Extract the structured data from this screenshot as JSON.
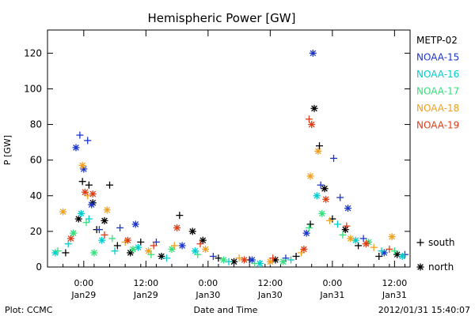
{
  "chart_data": {
    "type": "scatter",
    "title": "Hemispheric Power [GW]",
    "ylabel": "P [GW]",
    "xlabel": "Date and Time",
    "ylim": [
      0,
      133
    ],
    "xlim": [
      "2012-01-28T17:00",
      "2012-01-31T15:00"
    ],
    "y_ticks": [
      0,
      20,
      40,
      60,
      80,
      100,
      120
    ],
    "x_ticks": [
      {
        "at": "2012-01-29T00:00",
        "time": "0:00",
        "date": "Jan29"
      },
      {
        "at": "2012-01-29T12:00",
        "time": "12:00",
        "date": "Jan29"
      },
      {
        "at": "2012-01-30T00:00",
        "time": "0:00",
        "date": "Jan30"
      },
      {
        "at": "2012-01-30T12:00",
        "time": "12:00",
        "date": "Jan30"
      },
      {
        "at": "2012-01-31T00:00",
        "time": "0:00",
        "date": "Jan31"
      },
      {
        "at": "2012-01-31T12:00",
        "time": "12:00",
        "date": "Jan31"
      }
    ],
    "hemisphere_key": [
      {
        "symbol": "+",
        "label": "south"
      },
      {
        "symbol": "*",
        "label": "north"
      }
    ],
    "series": [
      {
        "name": "METP-02",
        "color": "#000000",
        "points": [
          {
            "t": "2012-01-28T20:30",
            "v": 8,
            "h": "south"
          },
          {
            "t": "2012-01-28T23:00",
            "v": 27,
            "h": "north"
          },
          {
            "t": "2012-01-28T23:45",
            "v": 48,
            "h": "south"
          },
          {
            "t": "2012-01-29T01:00",
            "v": 46,
            "h": "south"
          },
          {
            "t": "2012-01-29T01:45",
            "v": 36,
            "h": "north"
          },
          {
            "t": "2012-01-29T02:30",
            "v": 21,
            "h": "south"
          },
          {
            "t": "2012-01-29T04:00",
            "v": 26,
            "h": "north"
          },
          {
            "t": "2012-01-29T05:00",
            "v": 46,
            "h": "south"
          },
          {
            "t": "2012-01-29T06:30",
            "v": 12,
            "h": "south"
          },
          {
            "t": "2012-01-29T09:00",
            "v": 8,
            "h": "north"
          },
          {
            "t": "2012-01-29T11:00",
            "v": 14,
            "h": "south"
          },
          {
            "t": "2012-01-29T15:00",
            "v": 6,
            "h": "north"
          },
          {
            "t": "2012-01-29T18:30",
            "v": 29,
            "h": "south"
          },
          {
            "t": "2012-01-29T21:00",
            "v": 20,
            "h": "north"
          },
          {
            "t": "2012-01-29T23:00",
            "v": 15,
            "h": "north"
          },
          {
            "t": "2012-01-30T02:00",
            "v": 5,
            "h": "south"
          },
          {
            "t": "2012-01-30T05:00",
            "v": 3,
            "h": "north"
          },
          {
            "t": "2012-01-30T08:00",
            "v": 4,
            "h": "south"
          },
          {
            "t": "2012-01-30T13:00",
            "v": 4,
            "h": "north"
          },
          {
            "t": "2012-01-30T17:00",
            "v": 6,
            "h": "south"
          },
          {
            "t": "2012-01-30T19:45",
            "v": 24,
            "h": "south"
          },
          {
            "t": "2012-01-30T20:30",
            "v": 89,
            "h": "north"
          },
          {
            "t": "2012-01-30T21:30",
            "v": 68,
            "h": "south"
          },
          {
            "t": "2012-01-30T22:30",
            "v": 44,
            "h": "north"
          },
          {
            "t": "2012-01-31T00:00",
            "v": 27,
            "h": "south"
          },
          {
            "t": "2012-01-31T02:30",
            "v": 21,
            "h": "north"
          },
          {
            "t": "2012-01-31T05:00",
            "v": 12,
            "h": "south"
          },
          {
            "t": "2012-01-31T09:00",
            "v": 6,
            "h": "south"
          },
          {
            "t": "2012-01-31T12:30",
            "v": 7,
            "h": "north"
          }
        ]
      },
      {
        "name": "NOAA-15",
        "color": "#1a35cc",
        "points": [
          {
            "t": "2012-01-28T22:30",
            "v": 67,
            "h": "north"
          },
          {
            "t": "2012-01-28T23:15",
            "v": 74,
            "h": "south"
          },
          {
            "t": "2012-01-29T00:00",
            "v": 55,
            "h": "north"
          },
          {
            "t": "2012-01-29T00:45",
            "v": 71,
            "h": "south"
          },
          {
            "t": "2012-01-29T01:30",
            "v": 35,
            "h": "north"
          },
          {
            "t": "2012-01-29T03:00",
            "v": 21,
            "h": "south"
          },
          {
            "t": "2012-01-29T07:00",
            "v": 22,
            "h": "south"
          },
          {
            "t": "2012-01-29T10:00",
            "v": 24,
            "h": "north"
          },
          {
            "t": "2012-01-29T14:00",
            "v": 14,
            "h": "south"
          },
          {
            "t": "2012-01-29T19:00",
            "v": 12,
            "h": "north"
          },
          {
            "t": "2012-01-30T01:00",
            "v": 6,
            "h": "south"
          },
          {
            "t": "2012-01-30T08:30",
            "v": 4,
            "h": "north"
          },
          {
            "t": "2012-01-30T15:00",
            "v": 5,
            "h": "south"
          },
          {
            "t": "2012-01-30T19:00",
            "v": 19,
            "h": "north"
          },
          {
            "t": "2012-01-30T20:15",
            "v": 120,
            "h": "north"
          },
          {
            "t": "2012-01-30T21:45",
            "v": 46,
            "h": "south"
          },
          {
            "t": "2012-01-31T00:15",
            "v": 61,
            "h": "south"
          },
          {
            "t": "2012-01-31T01:30",
            "v": 39,
            "h": "south"
          },
          {
            "t": "2012-01-31T03:00",
            "v": 33,
            "h": "north"
          },
          {
            "t": "2012-01-31T06:00",
            "v": 16,
            "h": "south"
          },
          {
            "t": "2012-01-31T10:00",
            "v": 8,
            "h": "north"
          },
          {
            "t": "2012-01-31T14:00",
            "v": 7,
            "h": "south"
          }
        ]
      },
      {
        "name": "NOAA-16",
        "color": "#00cccc",
        "points": [
          {
            "t": "2012-01-28T18:30",
            "v": 8,
            "h": "north"
          },
          {
            "t": "2012-01-28T21:00",
            "v": 13,
            "h": "south"
          },
          {
            "t": "2012-01-28T23:30",
            "v": 30,
            "h": "north"
          },
          {
            "t": "2012-01-29T01:00",
            "v": 27,
            "h": "south"
          },
          {
            "t": "2012-01-29T03:30",
            "v": 15,
            "h": "north"
          },
          {
            "t": "2012-01-29T06:00",
            "v": 9,
            "h": "south"
          },
          {
            "t": "2012-01-29T10:30",
            "v": 11,
            "h": "north"
          },
          {
            "t": "2012-01-29T16:00",
            "v": 5,
            "h": "south"
          },
          {
            "t": "2012-01-29T21:30",
            "v": 9,
            "h": "north"
          },
          {
            "t": "2012-01-30T04:00",
            "v": 3,
            "h": "south"
          },
          {
            "t": "2012-01-30T10:00",
            "v": 2,
            "h": "north"
          },
          {
            "t": "2012-01-30T16:00",
            "v": 4,
            "h": "south"
          },
          {
            "t": "2012-01-30T21:00",
            "v": 40,
            "h": "north"
          },
          {
            "t": "2012-01-31T01:00",
            "v": 24,
            "h": "south"
          },
          {
            "t": "2012-01-31T04:30",
            "v": 15,
            "h": "north"
          },
          {
            "t": "2012-01-31T09:30",
            "v": 9,
            "h": "south"
          },
          {
            "t": "2012-01-31T13:30",
            "v": 6,
            "h": "north"
          }
        ]
      },
      {
        "name": "NOAA-17",
        "color": "#33e07a",
        "points": [
          {
            "t": "2012-01-28T19:00",
            "v": 9,
            "h": "south"
          },
          {
            "t": "2012-01-28T22:00",
            "v": 19,
            "h": "north"
          },
          {
            "t": "2012-01-29T00:30",
            "v": 25,
            "h": "south"
          },
          {
            "t": "2012-01-29T02:00",
            "v": 8,
            "h": "north"
          },
          {
            "t": "2012-01-29T05:30",
            "v": 16,
            "h": "south"
          },
          {
            "t": "2012-01-29T09:30",
            "v": 10,
            "h": "north"
          },
          {
            "t": "2012-01-29T13:00",
            "v": 7,
            "h": "south"
          },
          {
            "t": "2012-01-29T17:00",
            "v": 10,
            "h": "north"
          },
          {
            "t": "2012-01-29T22:00",
            "v": 7,
            "h": "south"
          },
          {
            "t": "2012-01-30T03:00",
            "v": 4,
            "h": "north"
          },
          {
            "t": "2012-01-30T09:00",
            "v": 2,
            "h": "south"
          },
          {
            "t": "2012-01-30T14:30",
            "v": 3,
            "h": "north"
          },
          {
            "t": "2012-01-30T19:30",
            "v": 22,
            "h": "south"
          },
          {
            "t": "2012-01-30T22:00",
            "v": 30,
            "h": "north"
          },
          {
            "t": "2012-01-31T02:00",
            "v": 18,
            "h": "south"
          },
          {
            "t": "2012-01-31T07:00",
            "v": 14,
            "h": "north"
          },
          {
            "t": "2012-01-31T12:00",
            "v": 9,
            "h": "south"
          }
        ]
      },
      {
        "name": "NOAA-18",
        "color": "#f0a020",
        "points": [
          {
            "t": "2012-01-28T20:00",
            "v": 31,
            "h": "north"
          },
          {
            "t": "2012-01-28T23:45",
            "v": 57,
            "h": "north"
          },
          {
            "t": "2012-01-29T00:45",
            "v": 40,
            "h": "south"
          },
          {
            "t": "2012-01-29T04:30",
            "v": 32,
            "h": "north"
          },
          {
            "t": "2012-01-29T08:00",
            "v": 14,
            "h": "south"
          },
          {
            "t": "2012-01-29T12:30",
            "v": 9,
            "h": "north"
          },
          {
            "t": "2012-01-29T17:30",
            "v": 12,
            "h": "south"
          },
          {
            "t": "2012-01-29T23:30",
            "v": 10,
            "h": "north"
          },
          {
            "t": "2012-01-30T06:00",
            "v": 5,
            "h": "south"
          },
          {
            "t": "2012-01-30T12:00",
            "v": 3,
            "h": "north"
          },
          {
            "t": "2012-01-30T18:00",
            "v": 8,
            "h": "south"
          },
          {
            "t": "2012-01-30T19:45",
            "v": 51,
            "h": "north"
          },
          {
            "t": "2012-01-30T21:15",
            "v": 65,
            "h": "north"
          },
          {
            "t": "2012-01-30T23:30",
            "v": 26,
            "h": "south"
          },
          {
            "t": "2012-01-31T03:30",
            "v": 16,
            "h": "north"
          },
          {
            "t": "2012-01-31T08:00",
            "v": 11,
            "h": "south"
          },
          {
            "t": "2012-01-31T11:30",
            "v": 17,
            "h": "north"
          }
        ]
      },
      {
        "name": "NOAA-19",
        "color": "#e03c14",
        "points": [
          {
            "t": "2012-01-28T21:30",
            "v": 16,
            "h": "north"
          },
          {
            "t": "2012-01-29T00:15",
            "v": 42,
            "h": "north"
          },
          {
            "t": "2012-01-29T01:45",
            "v": 41,
            "h": "north"
          },
          {
            "t": "2012-01-29T04:00",
            "v": 18,
            "h": "south"
          },
          {
            "t": "2012-01-29T08:30",
            "v": 15,
            "h": "north"
          },
          {
            "t": "2012-01-29T13:30",
            "v": 12,
            "h": "south"
          },
          {
            "t": "2012-01-29T18:00",
            "v": 22,
            "h": "north"
          },
          {
            "t": "2012-01-29T22:30",
            "v": 13,
            "h": "south"
          },
          {
            "t": "2012-01-30T07:00",
            "v": 4,
            "h": "north"
          },
          {
            "t": "2012-01-30T12:30",
            "v": 5,
            "h": "south"
          },
          {
            "t": "2012-01-30T18:30",
            "v": 10,
            "h": "north"
          },
          {
            "t": "2012-01-30T19:30",
            "v": 83,
            "h": "south"
          },
          {
            "t": "2012-01-30T20:00",
            "v": 80,
            "h": "north"
          },
          {
            "t": "2012-01-30T22:45",
            "v": 38,
            "h": "north"
          },
          {
            "t": "2012-01-31T02:45",
            "v": 23,
            "h": "south"
          },
          {
            "t": "2012-01-31T06:30",
            "v": 13,
            "h": "north"
          },
          {
            "t": "2012-01-31T11:00",
            "v": 10,
            "h": "south"
          }
        ]
      }
    ]
  },
  "footer": {
    "left": "Plot: CCMC",
    "right": "2012/01/31  15:40:07"
  }
}
